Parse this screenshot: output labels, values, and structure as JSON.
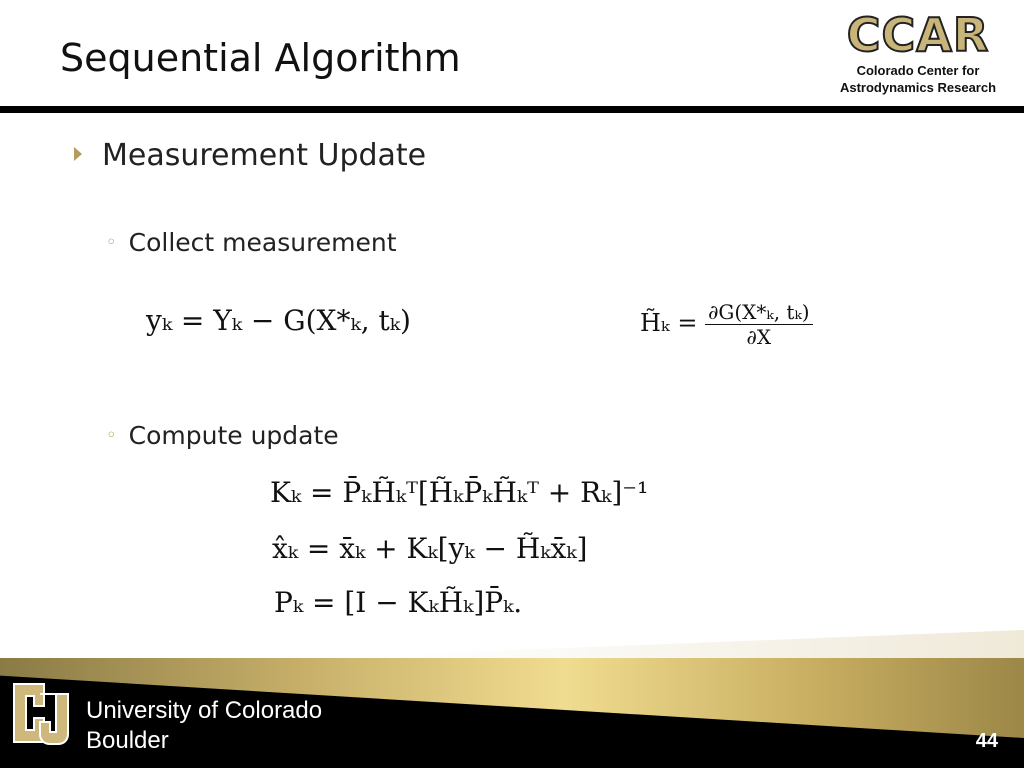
{
  "title": "Sequential Algorithm",
  "logo": {
    "acronym": "CCAR",
    "line1": "Colorado Center for",
    "line2": "Astrodynamics Research"
  },
  "bullets": {
    "level1": "Measurement Update",
    "sub1": "Collect measurement",
    "sub2": "Compute update"
  },
  "equations": {
    "residual": "yₖ = Yₖ − G(X*ₖ, tₖ)",
    "h_lhs": "H̃ₖ = ",
    "h_num": "∂G(X*ₖ, tₖ)",
    "h_den": "∂X",
    "gain": "Kₖ = P̄ₖH̃ₖᵀ[H̃ₖP̄ₖH̃ₖᵀ + Rₖ]⁻¹",
    "state": "x̂ₖ = x̄ₖ + Kₖ[yₖ − H̃ₖx̄ₖ]",
    "cov": "Pₖ = [I − KₖH̃ₖ]P̄ₖ."
  },
  "footer": {
    "university_line1": "University of Colorado",
    "university_line2": "Boulder",
    "page_number": "44"
  },
  "colors": {
    "gold": "#c9b57a",
    "black": "#000000"
  }
}
